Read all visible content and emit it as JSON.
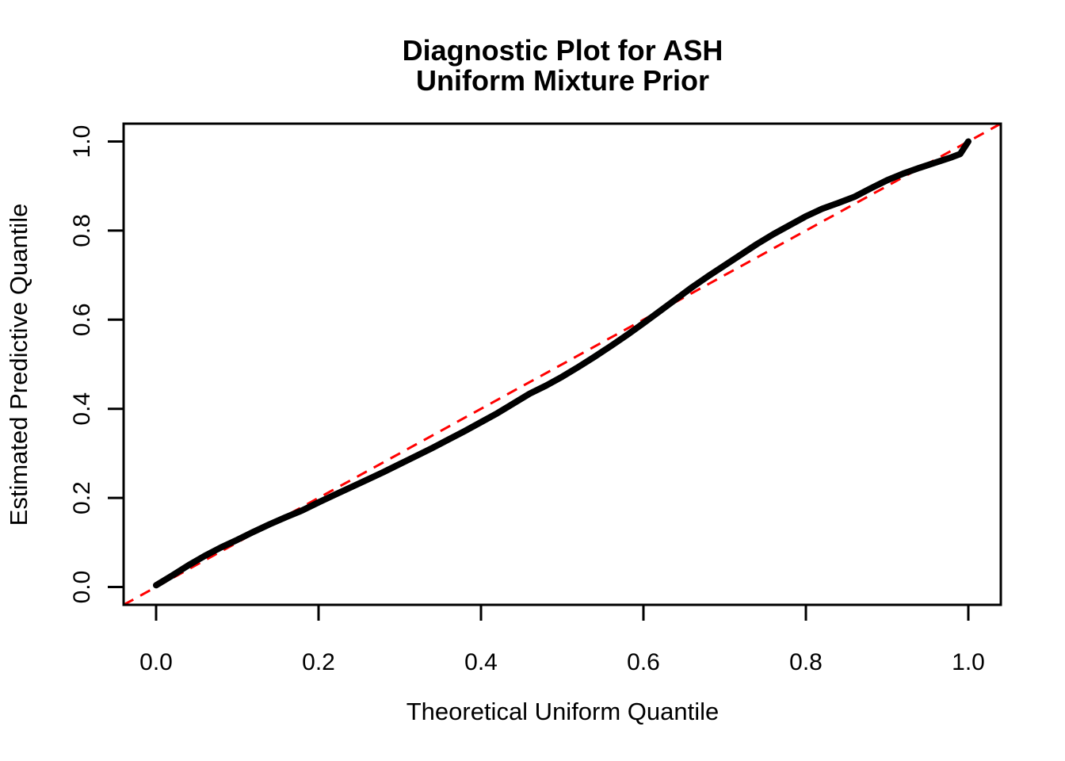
{
  "figure": {
    "background_color": "#ffffff",
    "frame_color": "#000000"
  },
  "chart_data": {
    "type": "line",
    "title_line1": "Diagnostic Plot for ASH",
    "title_line2": "Uniform Mixture Prior",
    "xlabel": "Theoretical Uniform Quantile",
    "ylabel": "Estimated Predictive Quantile",
    "x_ticks": [
      "0.0",
      "0.2",
      "0.4",
      "0.6",
      "0.8",
      "1.0"
    ],
    "y_ticks": [
      "0.0",
      "0.2",
      "0.4",
      "0.6",
      "0.8",
      "1.0"
    ],
    "x_tick_values": [
      0.0,
      0.2,
      0.4,
      0.6,
      0.8,
      1.0
    ],
    "y_tick_values": [
      0.0,
      0.2,
      0.4,
      0.6,
      0.8,
      1.0
    ],
    "xlim": [
      -0.04,
      1.04
    ],
    "ylim": [
      -0.04,
      1.04
    ],
    "grid": false,
    "legend": "none",
    "series": [
      {
        "name": "estimated-predictive-quantile-curve",
        "color": "#000000",
        "style": "solid",
        "x": [
          0.0,
          0.02,
          0.04,
          0.06,
          0.08,
          0.1,
          0.12,
          0.14,
          0.16,
          0.18,
          0.2,
          0.22,
          0.24,
          0.26,
          0.28,
          0.3,
          0.32,
          0.34,
          0.36,
          0.38,
          0.4,
          0.42,
          0.44,
          0.46,
          0.48,
          0.5,
          0.52,
          0.54,
          0.56,
          0.58,
          0.6,
          0.62,
          0.64,
          0.66,
          0.68,
          0.7,
          0.72,
          0.74,
          0.76,
          0.78,
          0.8,
          0.82,
          0.84,
          0.86,
          0.88,
          0.9,
          0.92,
          0.94,
          0.96,
          0.98,
          0.99,
          1.0
        ],
        "y": [
          0.004,
          0.026,
          0.049,
          0.07,
          0.089,
          0.106,
          0.124,
          0.141,
          0.157,
          0.172,
          0.19,
          0.207,
          0.224,
          0.241,
          0.258,
          0.276,
          0.294,
          0.312,
          0.331,
          0.35,
          0.37,
          0.39,
          0.412,
          0.434,
          0.452,
          0.472,
          0.494,
          0.517,
          0.541,
          0.566,
          0.592,
          0.619,
          0.646,
          0.673,
          0.698,
          0.722,
          0.746,
          0.77,
          0.792,
          0.812,
          0.832,
          0.849,
          0.862,
          0.876,
          0.895,
          0.913,
          0.928,
          0.941,
          0.953,
          0.965,
          0.972,
          1.0
        ]
      }
    ],
    "reference_line": {
      "name": "identity-line-y-equals-x",
      "color": "#ff0000",
      "style": "dashed",
      "slope": 1,
      "intercept": 0
    }
  }
}
